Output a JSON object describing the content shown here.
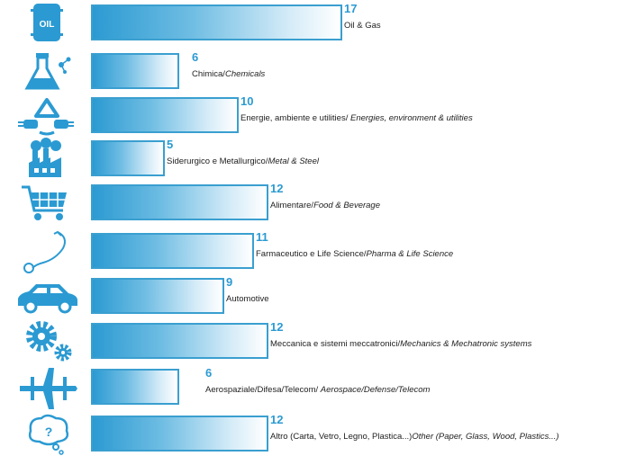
{
  "chart_data": {
    "type": "bar",
    "orientation": "horizontal",
    "categories": [
      {
        "it": "Oil & Gas",
        "en": ""
      },
      {
        "it": "Chimica/",
        "en": "Chemicals"
      },
      {
        "it": "Energie, ambiente e utilities/ ",
        "en": "Energies, environment & utilities"
      },
      {
        "it": "Siderurgico e Metallurgico/",
        "en": "Metal & Steel"
      },
      {
        "it": "Alimentare/",
        "en": "Food & Beverage"
      },
      {
        "it": "Farmaceutico e Life Science/",
        "en": "Pharma & Life Science"
      },
      {
        "it": "Automotive",
        "en": ""
      },
      {
        "it": "Meccanica e sistemi meccatronici/",
        "en": "Mechanics & Mechatronic systems"
      },
      {
        "it": "Aerospaziale/Difesa/Telecom/ ",
        "en": "Aerospace/Defense/Telecom"
      },
      {
        "it": "Altro (Carta, Vetro, Legno, Plastica...)",
        "en": "Other (Paper, Glass, Wood, Plastics...)"
      }
    ],
    "values": [
      17,
      6,
      10,
      5,
      12,
      11,
      9,
      12,
      6,
      12
    ],
    "icons": [
      "oil-barrel-icon",
      "chemistry-flask-icon",
      "energy-recycle-icon",
      "factory-icon",
      "shopping-cart-icon",
      "stethoscope-icon",
      "car-icon",
      "gears-icon",
      "airplane-icon",
      "thought-bubble-icon"
    ],
    "value_labels": [
      "17",
      "6",
      "10",
      "5",
      "12",
      "11",
      "9",
      "12",
      "6",
      "12"
    ],
    "xlim": [
      0,
      17
    ],
    "bar_color": "#2b9ad2",
    "text_color": "#222222",
    "grid": false,
    "legend": "none"
  }
}
